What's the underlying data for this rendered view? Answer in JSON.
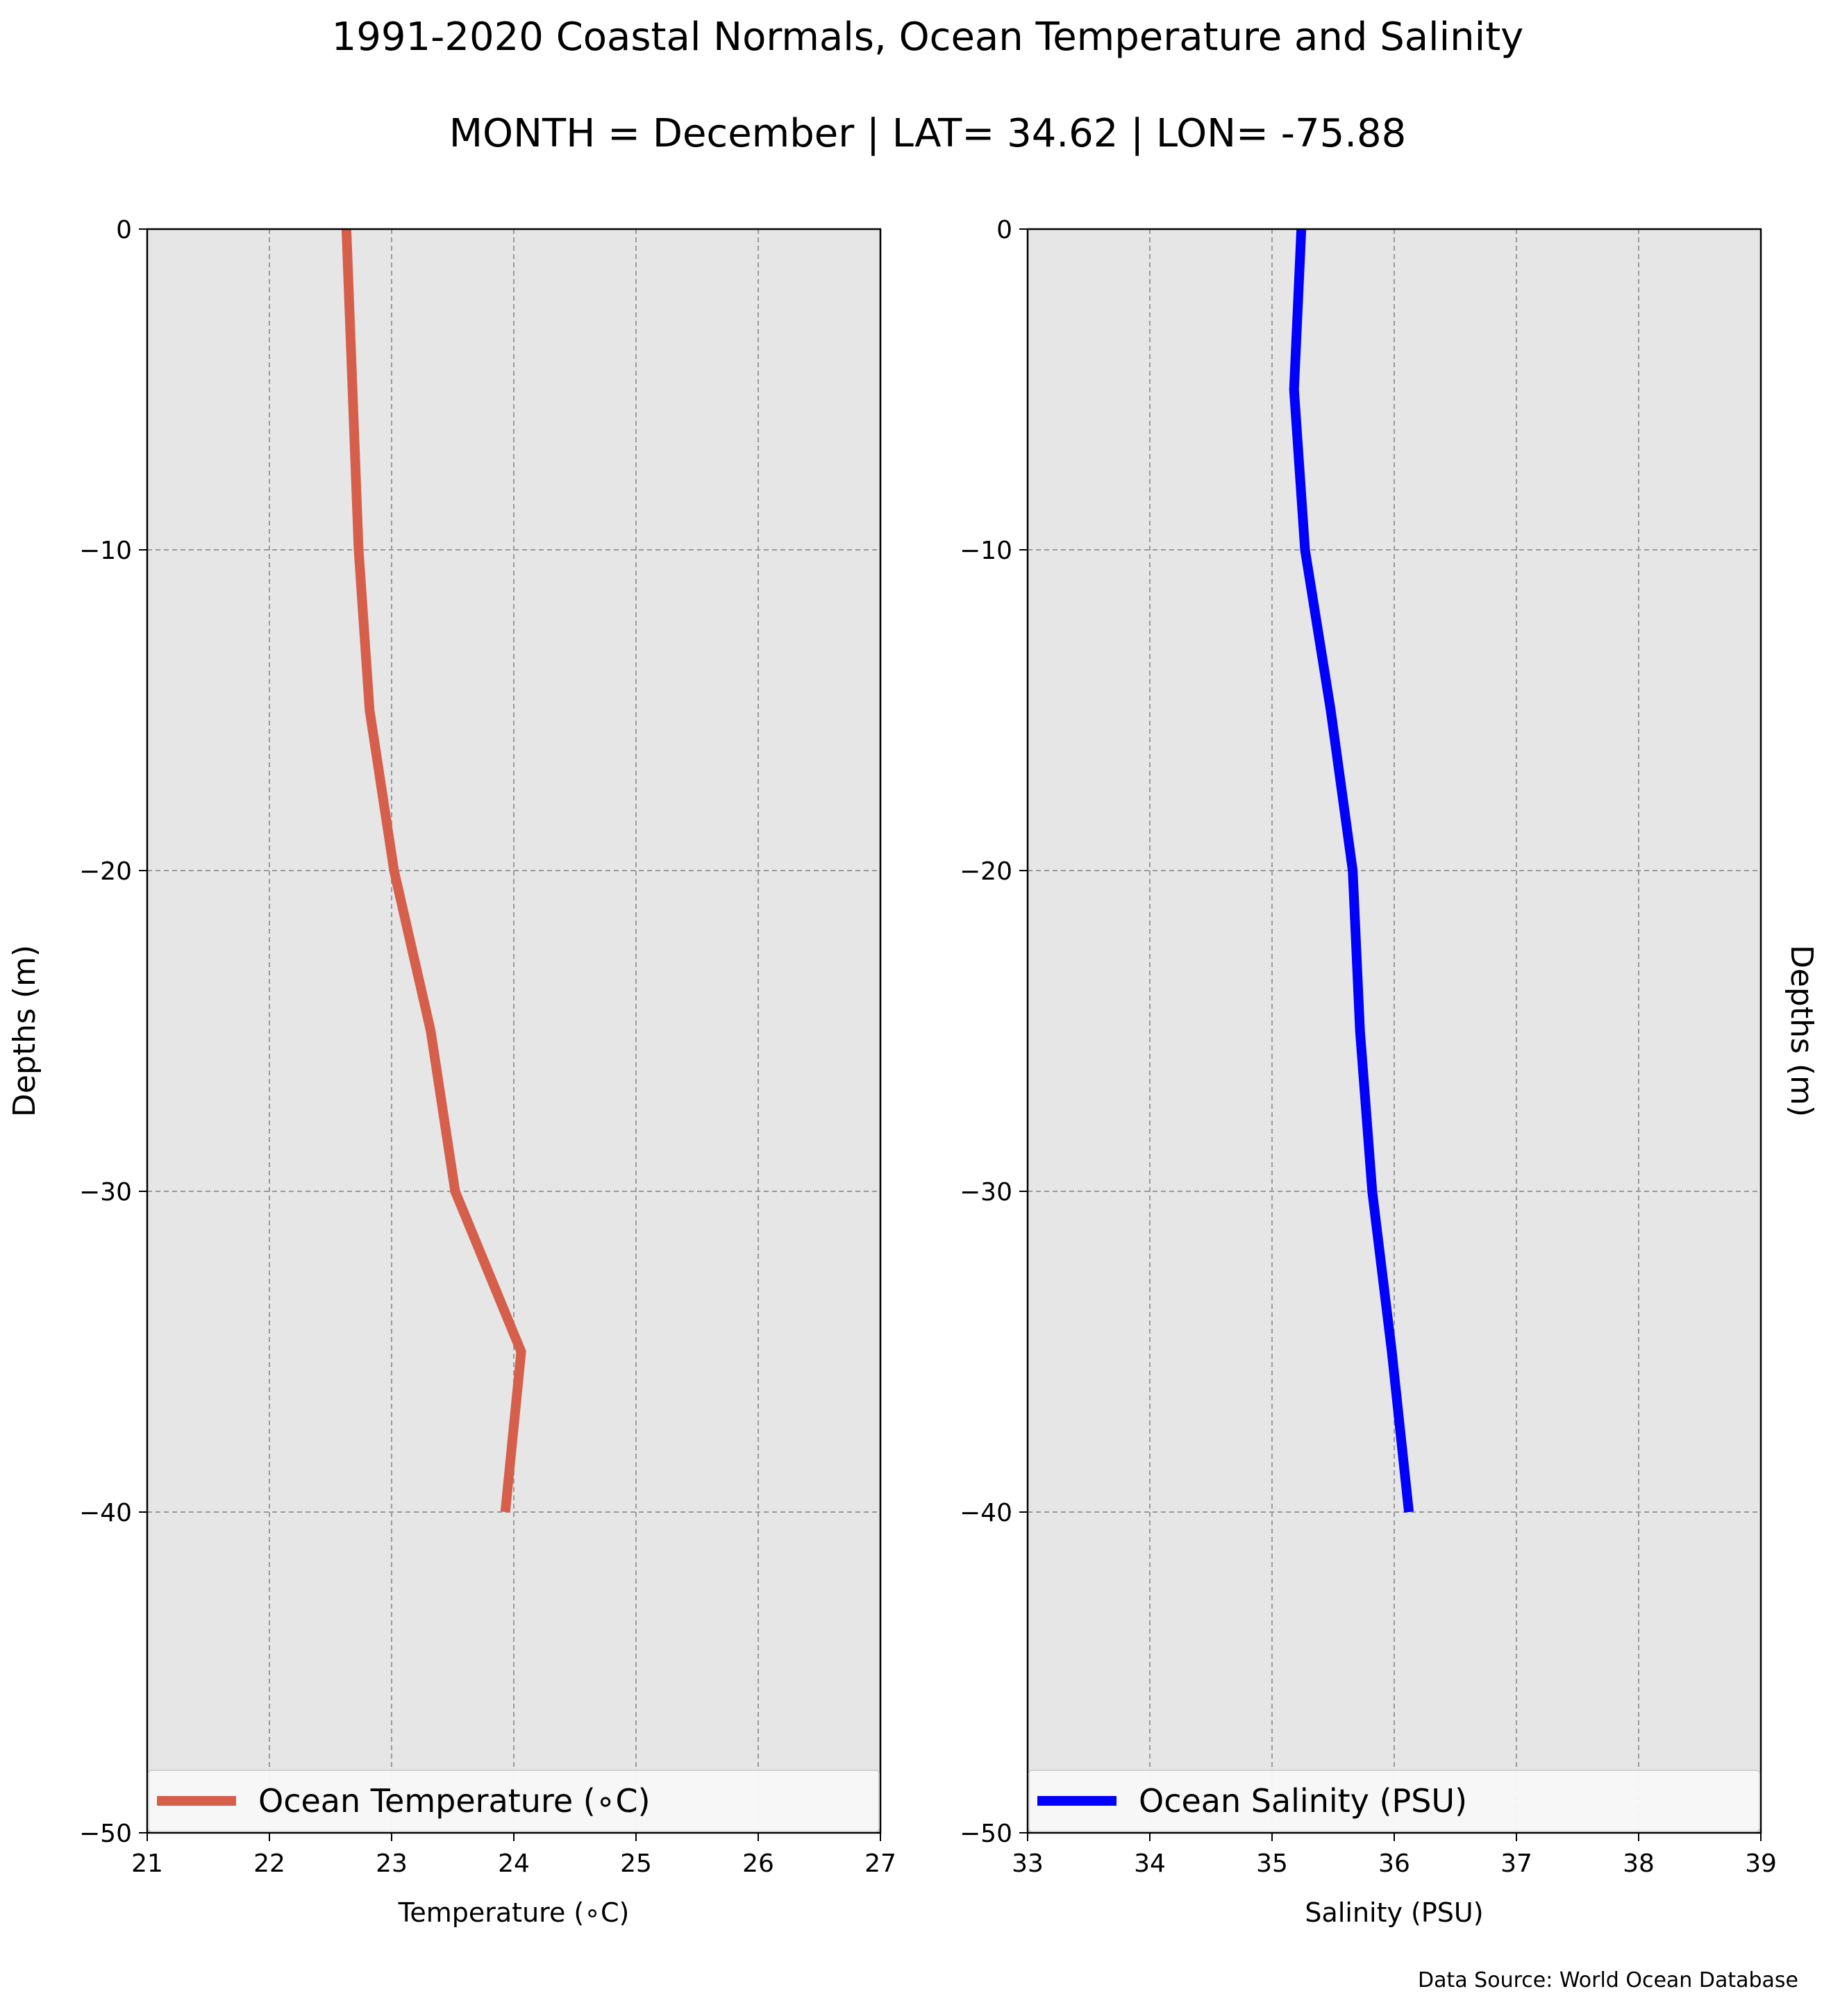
{
  "title": "1991-2020 Coastal Normals, Ocean Temperature and Salinity",
  "subtitle": "MONTH = December | LAT= 34.62 | LON= -75.88",
  "source": "Data Source: World Ocean Database",
  "chart_data": [
    {
      "type": "line",
      "xlabel": "Temperature (∘C)",
      "ylabel": "Depths (m)",
      "xlim": [
        21,
        27
      ],
      "ylim": [
        -50,
        0
      ],
      "x_ticks": [
        "21",
        "22",
        "23",
        "24",
        "25",
        "26",
        "27"
      ],
      "y_ticks": [
        "0",
        "−10",
        "−20",
        "−30",
        "−40",
        "−50"
      ],
      "grid": true,
      "legend_position": "bottom",
      "series": [
        {
          "name": "Ocean Temperature (∘C)",
          "color": "#d65f4c",
          "x": [
            22.63,
            22.68,
            22.73,
            22.82,
            23.02,
            23.32,
            23.52,
            24.06,
            23.93
          ],
          "y": [
            0,
            -5,
            -10,
            -15,
            -20,
            -25,
            -30,
            -35,
            -40
          ]
        }
      ]
    },
    {
      "type": "line",
      "xlabel": "Salinity (PSU)",
      "ylabel": "Depths (m)",
      "xlim": [
        33,
        39
      ],
      "ylim": [
        -50,
        0
      ],
      "x_ticks": [
        "33",
        "34",
        "35",
        "36",
        "37",
        "38",
        "39"
      ],
      "y_ticks": [
        "0",
        "−10",
        "−20",
        "−30",
        "−40",
        "−50"
      ],
      "grid": true,
      "legend_position": "bottom",
      "series": [
        {
          "name": "Ocean Salinity (PSU)",
          "color": "#0000ff",
          "x": [
            35.24,
            35.18,
            35.27,
            35.48,
            35.66,
            35.72,
            35.82,
            35.98,
            36.12
          ],
          "y": [
            0,
            -5,
            -10,
            -15,
            -20,
            -25,
            -30,
            -35,
            -40
          ]
        }
      ]
    }
  ]
}
